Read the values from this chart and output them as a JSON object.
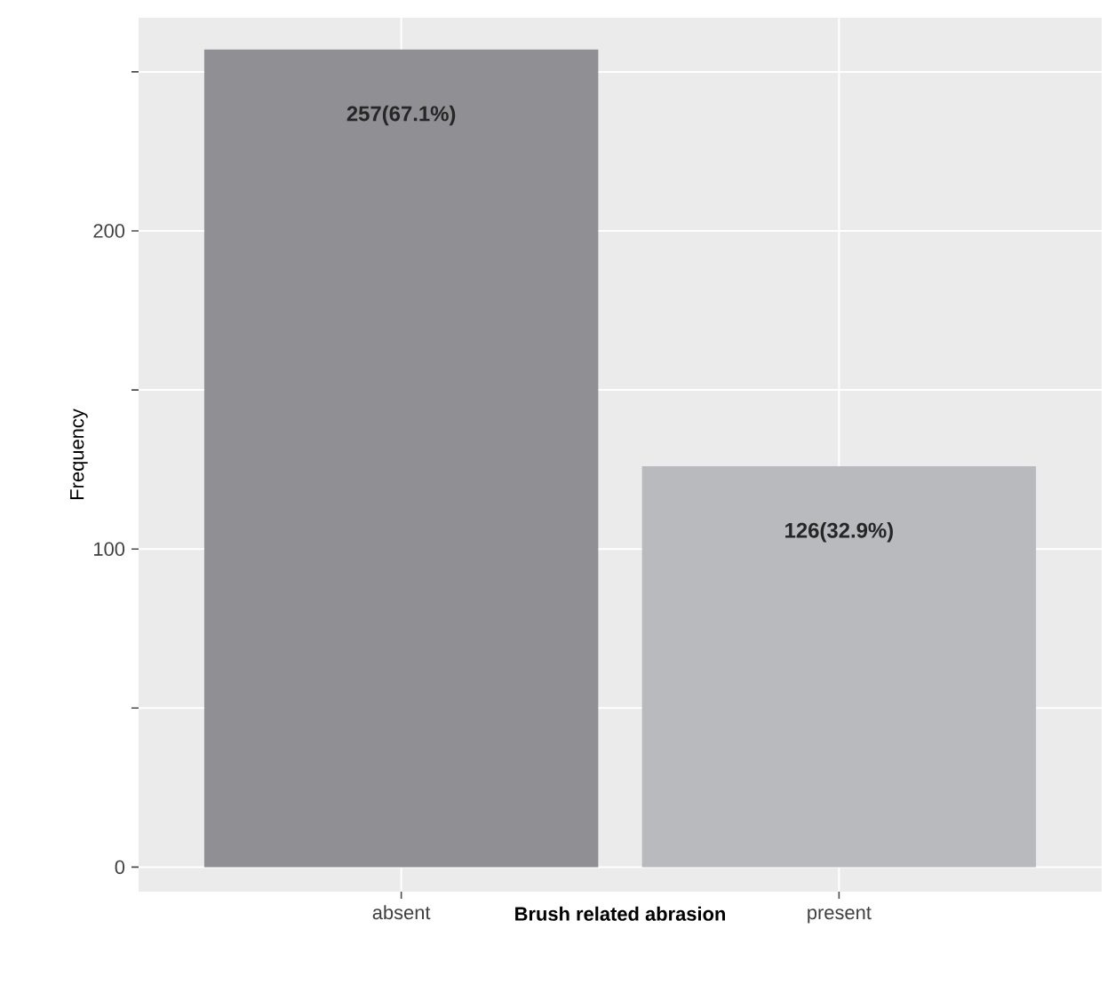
{
  "chart_data": {
    "type": "bar",
    "xlabel": "Brush related abrasion",
    "ylabel": "Frequency",
    "categories": [
      "absent",
      "present"
    ],
    "values": [
      257,
      126
    ],
    "colors": [
      "#909094",
      "#b9babd"
    ],
    "value_labels": [
      "257(67.1%)",
      "126(32.9%)"
    ],
    "ylim": [
      -7.7,
      267.0
    ],
    "yticks": [
      0,
      {
        "value": 50,
        "label": null
      },
      100,
      {
        "value": 150,
        "label": null
      },
      200,
      {
        "value": 250,
        "label": null
      }
    ],
    "grid": true
  }
}
